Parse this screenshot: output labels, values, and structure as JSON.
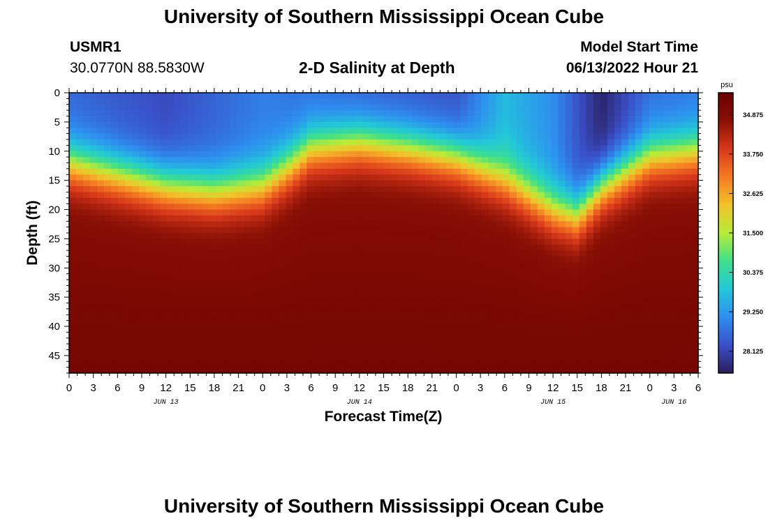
{
  "page": {
    "title_top": "University of Southern Mississippi Ocean Cube",
    "title_bottom": "University of Southern Mississippi Ocean Cube",
    "station": "USMR1",
    "coords": "30.0770N  88.5830W",
    "plot_title": "2-D Salinity at Depth",
    "model_start_label": "Model Start Time",
    "model_start_value": "06/13/2022 Hour 21"
  },
  "chart_data": {
    "type": "heatmap",
    "title": "2-D Salinity at Depth",
    "xlabel": "Forecast Time(Z)",
    "ylabel": "Depth (ft)",
    "x_range_hours": [
      0,
      78
    ],
    "y_range_ft": [
      0,
      48
    ],
    "x_tick_labels": [
      "0",
      "3",
      "6",
      "9",
      "12",
      "15",
      "18",
      "21",
      "0",
      "3",
      "6",
      "9",
      "12",
      "15",
      "18",
      "21",
      "0",
      "3",
      "6",
      "9",
      "12",
      "15",
      "18",
      "21",
      "0",
      "3",
      "6"
    ],
    "date_labels": [
      {
        "label": "JUN 13",
        "hour": 12
      },
      {
        "label": "JUN 14",
        "hour": 36
      },
      {
        "label": "JUN 15",
        "hour": 60
      },
      {
        "label": "JUN 16",
        "hour": 75
      }
    ],
    "y_ticks": [
      0,
      5,
      10,
      15,
      20,
      25,
      30,
      35,
      40,
      45
    ],
    "colorbar": {
      "unit": "psu",
      "min": 27.5,
      "max": 35.5,
      "tick_labels": [
        "34.875",
        "33.750",
        "32.625",
        "31.500",
        "30.375",
        "29.250",
        "28.125"
      ],
      "colormap_stops": [
        "#2a1d5c",
        "#3a50c8",
        "#2e8ef0",
        "#22c8d8",
        "#3ee08a",
        "#b8ec36",
        "#f2c22a",
        "#f57a22",
        "#d8381a",
        "#8a1005",
        "#6a0000"
      ]
    },
    "mixed_layer_depth_ft": [
      {
        "hour": 0,
        "depth": 12
      },
      {
        "hour": 6,
        "depth": 14
      },
      {
        "hour": 12,
        "depth": 16
      },
      {
        "hour": 18,
        "depth": 17
      },
      {
        "hour": 24,
        "depth": 16
      },
      {
        "hour": 27,
        "depth": 13
      },
      {
        "hour": 30,
        "depth": 9.5
      },
      {
        "hour": 36,
        "depth": 8.5
      },
      {
        "hour": 42,
        "depth": 9.5
      },
      {
        "hour": 48,
        "depth": 11
      },
      {
        "hour": 54,
        "depth": 15
      },
      {
        "hour": 60,
        "depth": 20
      },
      {
        "hour": 63,
        "depth": 21
      },
      {
        "hour": 66,
        "depth": 16
      },
      {
        "hour": 72,
        "depth": 11
      },
      {
        "hour": 78,
        "depth": 10
      }
    ],
    "surface_salinity_psu": [
      {
        "hour": 0,
        "value": 28.6
      },
      {
        "hour": 12,
        "value": 28.2
      },
      {
        "hour": 24,
        "value": 28.9
      },
      {
        "hour": 36,
        "value": 28.5
      },
      {
        "hour": 48,
        "value": 28.3
      },
      {
        "hour": 54,
        "value": 29.7
      },
      {
        "hour": 60,
        "value": 29.1
      },
      {
        "hour": 66,
        "value": 27.6
      },
      {
        "hour": 72,
        "value": 28.7
      },
      {
        "hour": 78,
        "value": 28.8
      }
    ],
    "deep_salinity_psu": 35.2
  }
}
